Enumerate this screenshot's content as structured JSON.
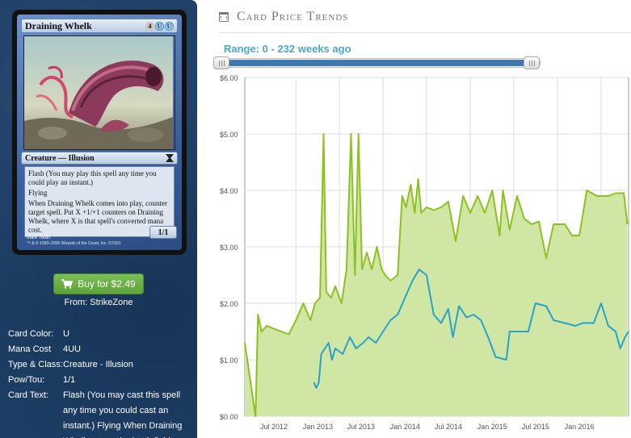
{
  "card": {
    "name": "Draining Whelk",
    "mana_symbols": [
      "4",
      "U",
      "U"
    ],
    "type_line": "Creature — Illusion",
    "rules_text": [
      "Flash (You may play this spell any time you could play an instant.)",
      "Flying",
      "When Draining Whelk comes into play, counter target spell. Put X +1/+1 counters on Draining Whelk, where X is that spell's converted mana cost."
    ],
    "power_toughness": "1/1",
    "artist": "Mark Tedin",
    "copyright": "™ & © 1993–2006 Wizards of the Coast, Inc. 57/301",
    "colors": {
      "frame": "#4a73b5",
      "border": "#111111"
    }
  },
  "buy": {
    "label": "Buy for $2.49",
    "icon": "shopping-cart-icon"
  },
  "vendor": {
    "text": "From: StrikeZone"
  },
  "details": [
    {
      "label": "Card Color:",
      "value": "U"
    },
    {
      "label": "Mana Cost",
      "value": "4UU"
    },
    {
      "label": "Type & Class:",
      "value": "Creature - Illusion"
    },
    {
      "label": "Pow/Tou:",
      "value": "1/1"
    },
    {
      "label": "Card Text:",
      "value": "Flash (You may cast this spell any time you could cast an instant.) Flying When Draining Whelk enters the battlefield,"
    }
  ],
  "section": {
    "title": "Card Price Trends",
    "icon": "calendar-icon"
  },
  "range": {
    "label": "Range: 0 - 232 weeks ago",
    "slider_start_fraction": 0.0,
    "slider_end_fraction": 1.0
  },
  "chart_data": {
    "type": "line",
    "title": "",
    "xlabel": "",
    "ylabel": "",
    "x_ticks": [
      "Jul 2012",
      "Jan 2013",
      "Jul 2013",
      "Jan 2014",
      "Jul 2014",
      "Jan 2015",
      "Jul 2015",
      "Jan 2016"
    ],
    "y_ticks": [
      "$0.00",
      "$1.00",
      "$2.00",
      "$3.00",
      "$4.00",
      "$5.00",
      "$6.00"
    ],
    "ylim": [
      0,
      6
    ],
    "xlim": [
      "2012-03-01",
      "2016-07-25"
    ],
    "grid": true,
    "series": [
      {
        "color": "#8dc11f",
        "fill": "#cfe6a4",
        "points": [
          [
            "2012-03-01",
            1.3
          ],
          [
            "2012-04-15",
            0.0
          ],
          [
            "2012-04-25",
            1.8
          ],
          [
            "2012-05-10",
            1.5
          ],
          [
            "2012-06-01",
            1.6
          ],
          [
            "2012-07-01",
            1.55
          ],
          [
            "2012-08-01",
            1.5
          ],
          [
            "2012-09-01",
            1.45
          ],
          [
            "2012-10-01",
            1.7
          ],
          [
            "2012-11-01",
            2.0
          ],
          [
            "2012-12-01",
            1.7
          ],
          [
            "2012-12-20",
            2.0
          ],
          [
            "2013-01-10",
            2.1
          ],
          [
            "2013-01-25",
            5.0
          ],
          [
            "2013-02-05",
            2.2
          ],
          [
            "2013-02-25",
            2.1
          ],
          [
            "2013-03-15",
            2.3
          ],
          [
            "2013-04-10",
            2.0
          ],
          [
            "2013-05-01",
            2.6
          ],
          [
            "2013-05-20",
            5.0
          ],
          [
            "2013-06-05",
            2.5
          ],
          [
            "2013-06-20",
            5.0
          ],
          [
            "2013-07-05",
            2.6
          ],
          [
            "2013-07-25",
            2.9
          ],
          [
            "2013-08-15",
            2.6
          ],
          [
            "2013-09-05",
            3.0
          ],
          [
            "2013-09-25",
            2.6
          ],
          [
            "2013-10-10",
            2.5
          ],
          [
            "2013-11-01",
            2.4
          ],
          [
            "2013-12-01",
            2.5
          ],
          [
            "2013-12-20",
            3.9
          ],
          [
            "2014-01-05",
            3.7
          ],
          [
            "2014-01-25",
            4.1
          ],
          [
            "2014-02-10",
            3.6
          ],
          [
            "2014-02-25",
            4.2
          ],
          [
            "2014-03-10",
            3.6
          ],
          [
            "2014-04-01",
            3.7
          ],
          [
            "2014-05-01",
            3.65
          ],
          [
            "2014-06-01",
            3.7
          ],
          [
            "2014-07-01",
            3.8
          ],
          [
            "2014-08-01",
            3.1
          ],
          [
            "2014-09-01",
            3.9
          ],
          [
            "2014-10-01",
            3.6
          ],
          [
            "2014-11-01",
            3.9
          ],
          [
            "2014-12-01",
            3.6
          ],
          [
            "2015-01-01",
            4.0
          ],
          [
            "2015-02-01",
            3.2
          ],
          [
            "2015-02-15",
            4.0
          ],
          [
            "2015-03-15",
            3.3
          ],
          [
            "2015-04-15",
            3.9
          ],
          [
            "2015-05-15",
            3.5
          ],
          [
            "2015-06-15",
            3.4
          ],
          [
            "2015-07-15",
            3.45
          ],
          [
            "2015-08-15",
            2.8
          ],
          [
            "2015-09-15",
            3.4
          ],
          [
            "2015-11-01",
            3.4
          ],
          [
            "2015-12-01",
            3.2
          ],
          [
            "2016-01-01",
            3.2
          ],
          [
            "2016-02-01",
            4.0
          ],
          [
            "2016-03-15",
            3.9
          ],
          [
            "2016-05-01",
            3.9
          ],
          [
            "2016-06-01",
            3.95
          ],
          [
            "2016-07-05",
            3.95
          ],
          [
            "2016-07-20",
            3.4
          ]
        ]
      },
      {
        "color": "#29a2c9",
        "points": [
          [
            "2012-12-15",
            0.6
          ],
          [
            "2012-12-25",
            0.5
          ],
          [
            "2013-01-05",
            0.6
          ],
          [
            "2013-01-15",
            1.1
          ],
          [
            "2013-02-15",
            1.3
          ],
          [
            "2013-03-01",
            1.0
          ],
          [
            "2013-03-15",
            1.2
          ],
          [
            "2013-04-15",
            1.1
          ],
          [
            "2013-05-15",
            1.4
          ],
          [
            "2013-06-10",
            1.2
          ],
          [
            "2013-07-10",
            1.3
          ],
          [
            "2013-08-01",
            1.4
          ],
          [
            "2013-09-01",
            1.3
          ],
          [
            "2013-10-01",
            1.5
          ],
          [
            "2013-11-01",
            1.7
          ],
          [
            "2013-12-01",
            1.8
          ],
          [
            "2014-01-01",
            2.1
          ],
          [
            "2014-02-01",
            2.4
          ],
          [
            "2014-03-01",
            2.6
          ],
          [
            "2014-04-01",
            2.5
          ],
          [
            "2014-05-01",
            1.8
          ],
          [
            "2014-06-01",
            1.65
          ],
          [
            "2014-07-01",
            1.9
          ],
          [
            "2014-07-20",
            1.4
          ],
          [
            "2014-08-15",
            1.95
          ],
          [
            "2014-09-15",
            1.75
          ],
          [
            "2014-10-15",
            1.8
          ],
          [
            "2014-11-15",
            1.7
          ],
          [
            "2014-12-15",
            1.4
          ],
          [
            "2015-01-15",
            1.05
          ],
          [
            "2015-03-01",
            1.0
          ],
          [
            "2015-03-15",
            1.5
          ],
          [
            "2015-05-01",
            1.5
          ],
          [
            "2015-06-01",
            1.5
          ],
          [
            "2015-07-01",
            2.0
          ],
          [
            "2015-08-15",
            1.95
          ],
          [
            "2015-09-15",
            1.7
          ],
          [
            "2015-11-01",
            1.65
          ],
          [
            "2015-12-15",
            1.6
          ],
          [
            "2016-01-15",
            1.65
          ],
          [
            "2016-03-01",
            1.65
          ],
          [
            "2016-04-01",
            2.0
          ],
          [
            "2016-05-01",
            1.6
          ],
          [
            "2016-06-01",
            1.5
          ],
          [
            "2016-06-20",
            1.2
          ],
          [
            "2016-07-10",
            1.4
          ],
          [
            "2016-07-25",
            1.5
          ]
        ]
      }
    ]
  }
}
